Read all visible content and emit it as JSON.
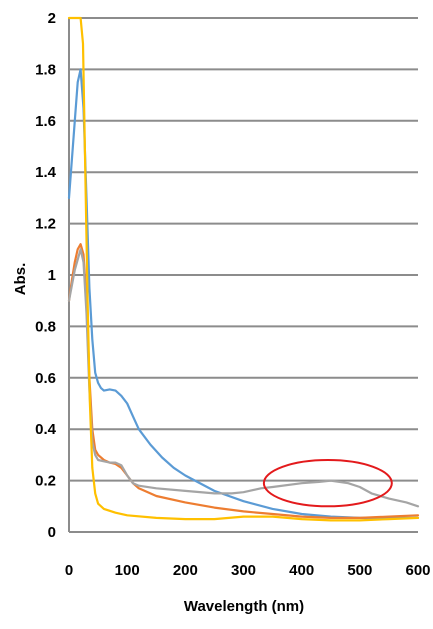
{
  "chart_data": {
    "type": "line",
    "xlabel": "Wavelength (nm)",
    "ylabel": "Abs.",
    "xlim": [
      0,
      600
    ],
    "ylim": [
      0,
      2
    ],
    "x_ticks": [
      "0",
      "100",
      "200",
      "300",
      "400",
      "500",
      "600"
    ],
    "y_ticks": [
      "0",
      "0.2",
      "0.4",
      "0.6",
      "0.8",
      "1",
      "1.2",
      "1.4",
      "1.6",
      "1.8",
      "2"
    ],
    "grid": true,
    "series": [
      {
        "color": "#5b9bd5",
        "points": [
          [
            0,
            1.3
          ],
          [
            5,
            1.45
          ],
          [
            10,
            1.6
          ],
          [
            15,
            1.75
          ],
          [
            20,
            1.8
          ],
          [
            25,
            1.65
          ],
          [
            30,
            1.3
          ],
          [
            35,
            0.95
          ],
          [
            40,
            0.75
          ],
          [
            45,
            0.62
          ],
          [
            50,
            0.58
          ],
          [
            55,
            0.56
          ],
          [
            60,
            0.55
          ],
          [
            70,
            0.555
          ],
          [
            80,
            0.55
          ],
          [
            90,
            0.53
          ],
          [
            100,
            0.5
          ],
          [
            110,
            0.45
          ],
          [
            120,
            0.4
          ],
          [
            140,
            0.34
          ],
          [
            160,
            0.29
          ],
          [
            180,
            0.25
          ],
          [
            200,
            0.22
          ],
          [
            250,
            0.16
          ],
          [
            300,
            0.12
          ],
          [
            350,
            0.09
          ],
          [
            400,
            0.07
          ],
          [
            450,
            0.06
          ],
          [
            500,
            0.055
          ],
          [
            550,
            0.055
          ],
          [
            600,
            0.055
          ]
        ]
      },
      {
        "color": "#ed7d31",
        "points": [
          [
            0,
            0.9
          ],
          [
            5,
            0.98
          ],
          [
            10,
            1.05
          ],
          [
            15,
            1.1
          ],
          [
            20,
            1.12
          ],
          [
            25,
            1.08
          ],
          [
            30,
            0.9
          ],
          [
            35,
            0.6
          ],
          [
            40,
            0.4
          ],
          [
            45,
            0.32
          ],
          [
            50,
            0.3
          ],
          [
            60,
            0.28
          ],
          [
            70,
            0.27
          ],
          [
            80,
            0.265
          ],
          [
            90,
            0.25
          ],
          [
            100,
            0.22
          ],
          [
            110,
            0.19
          ],
          [
            120,
            0.17
          ],
          [
            150,
            0.14
          ],
          [
            200,
            0.115
          ],
          [
            250,
            0.095
          ],
          [
            300,
            0.08
          ],
          [
            350,
            0.07
          ],
          [
            400,
            0.06
          ],
          [
            450,
            0.055
          ],
          [
            500,
            0.055
          ],
          [
            550,
            0.06
          ],
          [
            600,
            0.065
          ]
        ]
      },
      {
        "color": "#a5a5a5",
        "points": [
          [
            0,
            0.9
          ],
          [
            10,
            1.02
          ],
          [
            20,
            1.1
          ],
          [
            25,
            1.05
          ],
          [
            30,
            0.85
          ],
          [
            35,
            0.55
          ],
          [
            40,
            0.35
          ],
          [
            45,
            0.3
          ],
          [
            50,
            0.28
          ],
          [
            60,
            0.275
          ],
          [
            70,
            0.27
          ],
          [
            80,
            0.27
          ],
          [
            90,
            0.26
          ],
          [
            100,
            0.22
          ],
          [
            110,
            0.19
          ],
          [
            120,
            0.18
          ],
          [
            150,
            0.17
          ],
          [
            200,
            0.16
          ],
          [
            250,
            0.15
          ],
          [
            280,
            0.15
          ],
          [
            300,
            0.155
          ],
          [
            330,
            0.17
          ],
          [
            350,
            0.175
          ],
          [
            400,
            0.19
          ],
          [
            430,
            0.195
          ],
          [
            450,
            0.2
          ],
          [
            480,
            0.19
          ],
          [
            500,
            0.175
          ],
          [
            520,
            0.15
          ],
          [
            550,
            0.13
          ],
          [
            580,
            0.115
          ],
          [
            600,
            0.1
          ]
        ]
      },
      {
        "color": "#ffc000",
        "points": [
          [
            0,
            2
          ],
          [
            5,
            2
          ],
          [
            10,
            2
          ],
          [
            15,
            2
          ],
          [
            20,
            2
          ],
          [
            24,
            1.9
          ],
          [
            28,
            1.4
          ],
          [
            32,
            0.9
          ],
          [
            36,
            0.5
          ],
          [
            40,
            0.25
          ],
          [
            45,
            0.15
          ],
          [
            50,
            0.11
          ],
          [
            60,
            0.09
          ],
          [
            80,
            0.075
          ],
          [
            100,
            0.065
          ],
          [
            150,
            0.055
          ],
          [
            200,
            0.05
          ],
          [
            250,
            0.05
          ],
          [
            300,
            0.06
          ],
          [
            350,
            0.06
          ],
          [
            400,
            0.05
          ],
          [
            450,
            0.045
          ],
          [
            500,
            0.045
          ],
          [
            550,
            0.05
          ],
          [
            600,
            0.055
          ]
        ]
      }
    ],
    "annotations": [
      {
        "type": "ellipse",
        "color": "#e31a1c",
        "cx": 445,
        "cy": 0.19,
        "rx": 110,
        "ry": 0.09
      }
    ]
  }
}
